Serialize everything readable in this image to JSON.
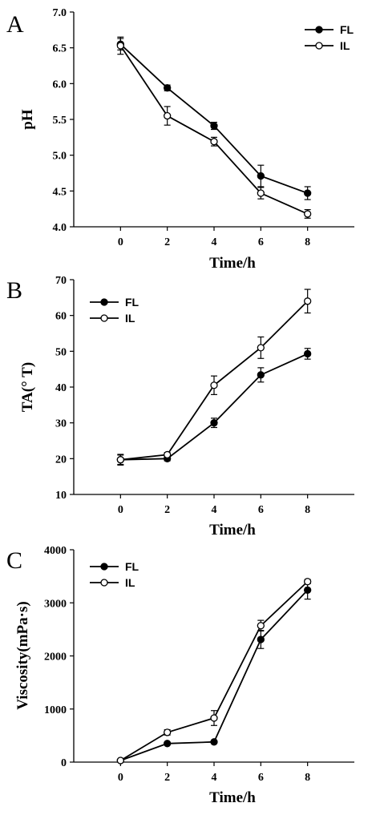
{
  "chart_data": [
    {
      "type": "line",
      "panel_label": "A",
      "x": [
        0,
        2,
        4,
        6,
        8
      ],
      "xlim": [
        -2,
        10
      ],
      "xticks": [
        0,
        2,
        4,
        6,
        8
      ],
      "ylim": [
        4.0,
        7.0
      ],
      "yticks": [
        "4.0",
        "4.5",
        "5.0",
        "5.5",
        "6.0",
        "6.5",
        "7.0"
      ],
      "xlabel": "Time/h",
      "ylabel": "pH",
      "legend_position": "top-right",
      "series": [
        {
          "name": "FL",
          "marker": "filled",
          "values": [
            6.55,
            5.94,
            5.41,
            4.71,
            4.47
          ],
          "errors": [
            0.08,
            0.04,
            0.05,
            0.15,
            0.09
          ]
        },
        {
          "name": "IL",
          "marker": "open",
          "values": [
            6.53,
            5.55,
            5.19,
            4.47,
            4.18
          ],
          "errors": [
            0.12,
            0.13,
            0.06,
            0.08,
            0.06
          ]
        }
      ]
    },
    {
      "type": "line",
      "panel_label": "B",
      "x": [
        0,
        2,
        4,
        6,
        8
      ],
      "xlim": [
        -2,
        10
      ],
      "xticks": [
        0,
        2,
        4,
        6,
        8
      ],
      "ylim": [
        10,
        70
      ],
      "yticks": [
        "10",
        "20",
        "30",
        "40",
        "50",
        "60",
        "70"
      ],
      "xlabel": "Time/h",
      "ylabel": "TA(° T)",
      "legend_position": "top-left",
      "series": [
        {
          "name": "FL",
          "marker": "filled",
          "values": [
            19.7,
            20.0,
            30.0,
            43.4,
            49.3
          ],
          "errors": [
            1.3,
            0.6,
            1.3,
            2.0,
            1.5
          ]
        },
        {
          "name": "IL",
          "marker": "open",
          "values": [
            19.7,
            21.1,
            40.5,
            51.0,
            64.0
          ],
          "errors": [
            1.5,
            0.6,
            2.6,
            3.0,
            3.3
          ]
        }
      ]
    },
    {
      "type": "line",
      "panel_label": "C",
      "x": [
        0,
        2,
        4,
        6,
        8
      ],
      "xlim": [
        -2,
        10
      ],
      "xticks": [
        0,
        2,
        4,
        6,
        8
      ],
      "ylim": [
        0,
        4000
      ],
      "yticks": [
        "0",
        "1000",
        "2000",
        "3000",
        "4000"
      ],
      "xlabel": "Time/h",
      "ylabel": "Viscosity(mPa·s)",
      "legend_position": "top-left",
      "series": [
        {
          "name": "FL",
          "marker": "filled",
          "values": [
            30,
            350,
            380,
            2310,
            3240
          ],
          "errors": [
            0,
            20,
            20,
            170,
            170
          ]
        },
        {
          "name": "IL",
          "marker": "open",
          "values": [
            30,
            560,
            830,
            2570,
            3400
          ],
          "errors": [
            0,
            50,
            140,
            100,
            40
          ]
        }
      ]
    }
  ]
}
